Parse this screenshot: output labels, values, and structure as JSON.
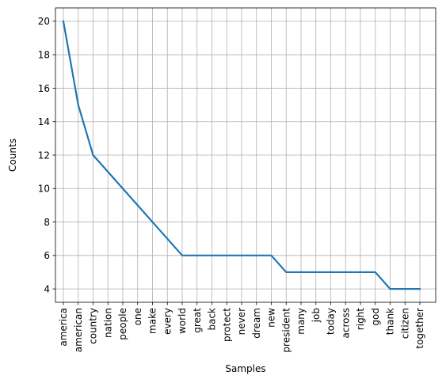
{
  "chart_data": {
    "type": "line",
    "xlabel": "Samples",
    "ylabel": "Counts",
    "grid": true,
    "ylim": [
      3.2,
      20.8
    ],
    "yticks": [
      "4",
      "6",
      "8",
      "10",
      "12",
      "14",
      "16",
      "18",
      "20"
    ],
    "categories": [
      "america",
      "american",
      "country",
      "nation",
      "people",
      "one",
      "make",
      "every",
      "world",
      "great",
      "back",
      "protect",
      "never",
      "dream",
      "new",
      "president",
      "many",
      "job",
      "today",
      "across",
      "right",
      "god",
      "thank",
      "citizen",
      "together"
    ],
    "series": [
      {
        "values": [
          20,
          15,
          12,
          11,
          10,
          9,
          8,
          7,
          6,
          6,
          6,
          6,
          6,
          6,
          6,
          5,
          5,
          5,
          5,
          5,
          5,
          5,
          4,
          4,
          4
        ],
        "color": "#1f77b4"
      }
    ]
  }
}
